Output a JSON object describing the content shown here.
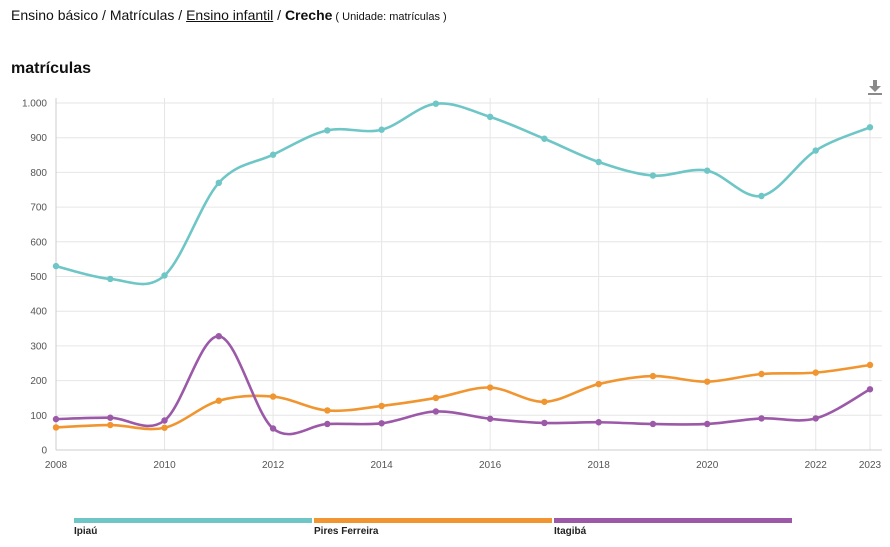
{
  "breadcrumb": {
    "part1": "Ensino básico",
    "sep1": " / ",
    "part2": "Matrículas",
    "sep2": " / ",
    "part3": "Ensino infantil",
    "sep3": " / ",
    "current": "Creche",
    "unit": "( Unidade: matrículas )"
  },
  "download": {
    "icon": "download-icon"
  },
  "chart_data": {
    "type": "line",
    "title": "matrículas",
    "xlabel": "",
    "ylabel": "",
    "x": [
      2008,
      2009,
      2010,
      2011,
      2012,
      2013,
      2014,
      2015,
      2016,
      2017,
      2018,
      2019,
      2020,
      2021,
      2022,
      2023
    ],
    "xlim": [
      2008,
      2023
    ],
    "ylim": [
      0,
      1000
    ],
    "x_ticks": [
      2008,
      2010,
      2012,
      2014,
      2016,
      2018,
      2020,
      2022,
      2023
    ],
    "y_ticks": [
      0,
      100,
      200,
      300,
      400,
      500,
      600,
      700,
      800,
      900,
      1000
    ],
    "y_tick_labels": [
      "0",
      "100",
      "200",
      "300",
      "400",
      "500",
      "600",
      "700",
      "800",
      "900",
      "1.000"
    ],
    "grid": true,
    "legend_position": "bottom",
    "series": [
      {
        "name": "Ipiaú",
        "color": "#6ec6c6",
        "values": [
          530,
          493,
          503,
          770,
          851,
          921,
          923,
          998,
          960,
          897,
          830,
          791,
          805,
          732,
          863,
          930
        ]
      },
      {
        "name": "Pires Ferreira",
        "color": "#f0952f",
        "values": [
          65,
          72,
          64,
          142,
          154,
          114,
          127,
          150,
          180,
          139,
          190,
          213,
          197,
          219,
          223,
          245
        ]
      },
      {
        "name": "Itagibá",
        "color": "#9b59a8",
        "values": [
          89,
          93,
          85,
          328,
          62,
          75,
          77,
          111,
          90,
          78,
          80,
          75,
          75,
          91,
          91,
          175
        ]
      }
    ]
  }
}
